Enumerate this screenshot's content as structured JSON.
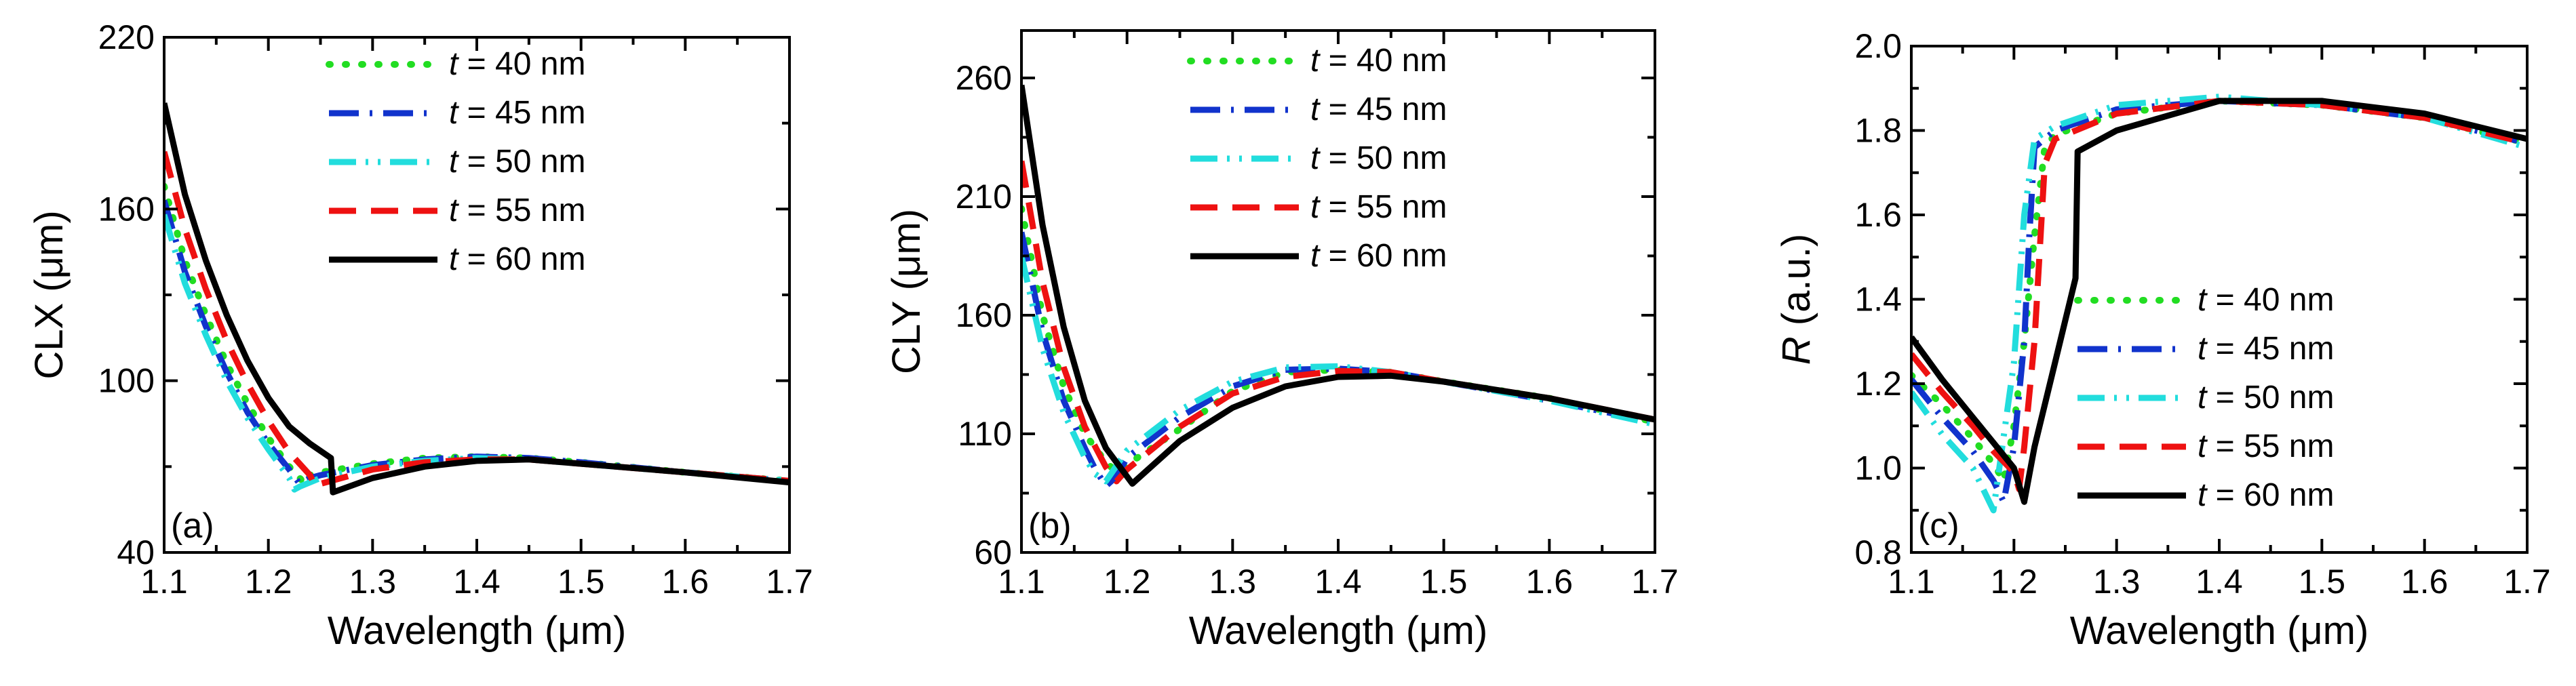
{
  "chart_data": [
    {
      "type": "line",
      "panel_label": "(a)",
      "xlabel": "Wavelength (μm)",
      "ylabel": "CLX (μm)",
      "xlim": [
        1.1,
        1.7
      ],
      "ylim": [
        40,
        220
      ],
      "xticks": [
        1.1,
        1.2,
        1.3,
        1.4,
        1.5,
        1.6,
        1.7
      ],
      "xtick_labels": [
        "1.1",
        "1.2",
        "1.3",
        "1.4",
        "1.5",
        "1.6",
        "1.7"
      ],
      "yticks": [
        40,
        100,
        160,
        220
      ],
      "ytick_labels": [
        "40",
        "100",
        "160",
        "220"
      ],
      "legend_position": "top-right",
      "series": [
        {
          "name": "t = 40 nm",
          "legend_italic": "t",
          "legend_rest": " = 40 nm",
          "color": "#22dd22",
          "dash": "dot",
          "x": [
            1.1,
            1.12,
            1.14,
            1.16,
            1.18,
            1.2,
            1.22,
            1.235,
            1.24,
            1.25,
            1.3,
            1.35,
            1.4,
            1.45,
            1.5,
            1.6,
            1.7
          ],
          "y": [
            168,
            142,
            123,
            106,
            92,
            80,
            70,
            64,
            67,
            68,
            71,
            73,
            73.5,
            73,
            71.5,
            68,
            65
          ]
        },
        {
          "name": "t = 45 nm",
          "legend_italic": "t",
          "legend_rest": " = 45 nm",
          "color": "#1133cc",
          "dash": "dashdot",
          "x": [
            1.1,
            1.12,
            1.14,
            1.16,
            1.18,
            1.2,
            1.22,
            1.23,
            1.24,
            1.25,
            1.3,
            1.35,
            1.4,
            1.45,
            1.5,
            1.6,
            1.7
          ],
          "y": [
            163,
            138,
            119,
            103,
            89,
            78,
            69,
            64,
            66,
            67,
            70.5,
            72.5,
            73.5,
            73,
            71.5,
            68,
            65
          ]
        },
        {
          "name": "t = 50 nm",
          "legend_italic": "t",
          "legend_rest": " = 50 nm",
          "color": "#22dddd",
          "dash": "dashdotdot",
          "x": [
            1.1,
            1.12,
            1.14,
            1.16,
            1.18,
            1.2,
            1.22,
            1.225,
            1.23,
            1.25,
            1.3,
            1.35,
            1.4,
            1.45,
            1.5,
            1.6,
            1.7
          ],
          "y": [
            158,
            134,
            116,
            100,
            87,
            76,
            66,
            62,
            63,
            66,
            70,
            72,
            73,
            72.5,
            71,
            68,
            65
          ]
        },
        {
          "name": "t = 55 nm",
          "legend_italic": "t",
          "legend_rest": " = 55 nm",
          "color": "#ee1111",
          "dash": "dash",
          "x": [
            1.1,
            1.12,
            1.14,
            1.16,
            1.18,
            1.2,
            1.22,
            1.24,
            1.245,
            1.25,
            1.3,
            1.35,
            1.4,
            1.45,
            1.5,
            1.6,
            1.7
          ],
          "y": [
            180,
            153,
            132,
            114,
            99,
            86,
            75,
            67,
            63,
            64,
            69,
            71.5,
            72.5,
            72.5,
            71,
            68,
            65
          ]
        },
        {
          "name": "t = 60 nm",
          "legend_italic": "t",
          "legend_rest": " = 60 nm",
          "color": "#000000",
          "dash": "solid",
          "x": [
            1.1,
            1.12,
            1.14,
            1.16,
            1.18,
            1.2,
            1.22,
            1.24,
            1.26,
            1.262,
            1.3,
            1.35,
            1.4,
            1.45,
            1.5,
            1.6,
            1.7
          ],
          "y": [
            197,
            165,
            142,
            123,
            107,
            94,
            84,
            78,
            73,
            61,
            66,
            70,
            72,
            72.5,
            71,
            68,
            64.5
          ]
        }
      ]
    },
    {
      "type": "line",
      "panel_label": "(b)",
      "xlabel": "Wavelength (μm)",
      "ylabel": "CLY (μm)",
      "xlim": [
        1.1,
        1.7
      ],
      "ylim": [
        60,
        280
      ],
      "xticks": [
        1.1,
        1.2,
        1.3,
        1.4,
        1.5,
        1.6,
        1.7
      ],
      "xtick_labels": [
        "1.1",
        "1.2",
        "1.3",
        "1.4",
        "1.5",
        "1.6",
        "1.7"
      ],
      "yticks": [
        60,
        110,
        160,
        210,
        260
      ],
      "ytick_labels": [
        "60",
        "110",
        "160",
        "210",
        "260"
      ],
      "legend_position": "top-right",
      "series": [
        {
          "name": "t = 40 nm",
          "legend_italic": "t",
          "legend_rest": " = 40 nm",
          "color": "#22dd22",
          "dash": "dot",
          "x": [
            1.1,
            1.12,
            1.14,
            1.16,
            1.18,
            1.19,
            1.2,
            1.25,
            1.3,
            1.35,
            1.4,
            1.45,
            1.5,
            1.6,
            1.7
          ],
          "y": [
            205,
            160,
            130,
            110,
            98,
            94,
            97,
            112,
            128,
            136,
            137,
            136,
            132,
            125,
            115
          ]
        },
        {
          "name": "t = 45 nm",
          "legend_italic": "t",
          "legend_rest": " = 45 nm",
          "color": "#1133cc",
          "dash": "dashdot",
          "x": [
            1.1,
            1.12,
            1.14,
            1.16,
            1.17,
            1.18,
            1.19,
            1.2,
            1.25,
            1.3,
            1.35,
            1.4,
            1.45,
            1.5,
            1.6,
            1.7
          ],
          "y": [
            195,
            153,
            124,
            104,
            95,
            88,
            92,
            100,
            117,
            130,
            137,
            137.5,
            136,
            132,
            124,
            115
          ]
        },
        {
          "name": "t = 50 nm",
          "legend_italic": "t",
          "legend_rest": " = 50 nm",
          "color": "#22dddd",
          "dash": "dashdotdot",
          "x": [
            1.1,
            1.12,
            1.14,
            1.16,
            1.17,
            1.18,
            1.2,
            1.25,
            1.3,
            1.35,
            1.4,
            1.45,
            1.5,
            1.6,
            1.7
          ],
          "y": [
            185,
            146,
            119,
            100,
            93,
            90,
            103,
            120,
            132,
            138,
            138.5,
            136,
            132,
            124,
            114
          ]
        },
        {
          "name": "t = 55 nm",
          "legend_italic": "t",
          "legend_rest": " = 55 nm",
          "color": "#ee1111",
          "dash": "dash",
          "x": [
            1.1,
            1.12,
            1.14,
            1.16,
            1.18,
            1.19,
            1.2,
            1.25,
            1.3,
            1.35,
            1.4,
            1.45,
            1.5,
            1.6,
            1.7
          ],
          "y": [
            225,
            174,
            138,
            113,
            96,
            90,
            95,
            113,
            127,
            134,
            136.5,
            136,
            132,
            125,
            116
          ]
        },
        {
          "name": "t = 60 nm",
          "legend_italic": "t",
          "legend_rest": " = 60 nm",
          "color": "#000000",
          "dash": "solid",
          "x": [
            1.1,
            1.12,
            1.14,
            1.16,
            1.18,
            1.2,
            1.205,
            1.21,
            1.25,
            1.3,
            1.35,
            1.4,
            1.45,
            1.5,
            1.6,
            1.7
          ],
          "y": [
            257,
            198,
            155,
            124,
            104,
            92,
            89,
            91,
            107,
            121,
            130,
            134,
            134.5,
            132,
            125,
            116
          ]
        }
      ]
    },
    {
      "type": "line",
      "panel_label": "(c)",
      "xlabel": "Wavelength (μm)",
      "ylabel_italic": "R",
      "ylabel_rest": " (a.u.)",
      "xlim": [
        1.1,
        1.7
      ],
      "ylim": [
        0.8,
        2.0
      ],
      "xticks": [
        1.1,
        1.2,
        1.3,
        1.4,
        1.5,
        1.6,
        1.7
      ],
      "xtick_labels": [
        "1.1",
        "1.2",
        "1.3",
        "1.4",
        "1.5",
        "1.6",
        "1.7"
      ],
      "yticks": [
        0.8,
        1.0,
        1.2,
        1.4,
        1.6,
        1.8,
        2.0
      ],
      "ytick_labels": [
        "0.8",
        "1.0",
        "1.2",
        "1.4",
        "1.6",
        "1.8",
        "2.0"
      ],
      "legend_position": "bottom-right",
      "series": [
        {
          "name": "t = 40 nm",
          "legend_italic": "t",
          "legend_rest": " = 40 nm",
          "color": "#22dd22",
          "dash": "dot",
          "x": [
            1.1,
            1.13,
            1.16,
            1.18,
            1.19,
            1.2,
            1.21,
            1.22,
            1.23,
            1.24,
            1.3,
            1.4,
            1.5,
            1.6,
            1.7
          ],
          "y": [
            1.22,
            1.15,
            1.07,
            1.01,
            0.97,
            1.1,
            1.3,
            1.55,
            1.76,
            1.79,
            1.84,
            1.87,
            1.86,
            1.83,
            1.77
          ]
        },
        {
          "name": "t = 45 nm",
          "legend_italic": "t",
          "legend_rest": " = 45 nm",
          "color": "#1133cc",
          "dash": "dashdot",
          "x": [
            1.1,
            1.13,
            1.16,
            1.18,
            1.19,
            1.2,
            1.21,
            1.215,
            1.22,
            1.24,
            1.3,
            1.4,
            1.5,
            1.6,
            1.7
          ],
          "y": [
            1.21,
            1.12,
            1.04,
            0.97,
            0.92,
            1.05,
            1.3,
            1.55,
            1.76,
            1.8,
            1.85,
            1.87,
            1.86,
            1.83,
            1.77
          ]
        },
        {
          "name": "t = 50 nm",
          "legend_italic": "t",
          "legend_rest": " = 50 nm",
          "color": "#22dddd",
          "dash": "dashdotdot",
          "x": [
            1.1,
            1.13,
            1.16,
            1.17,
            1.18,
            1.2,
            1.21,
            1.22,
            1.24,
            1.3,
            1.4,
            1.5,
            1.6,
            1.7
          ],
          "y": [
            1.18,
            1.08,
            1.0,
            0.95,
            0.9,
            1.25,
            1.6,
            1.78,
            1.81,
            1.86,
            1.88,
            1.86,
            1.83,
            1.76
          ]
        },
        {
          "name": "t = 55 nm",
          "legend_italic": "t",
          "legend_rest": " = 55 nm",
          "color": "#ee1111",
          "dash": "dash",
          "x": [
            1.1,
            1.13,
            1.16,
            1.18,
            1.2,
            1.205,
            1.21,
            1.22,
            1.23,
            1.24,
            1.3,
            1.4,
            1.5,
            1.6,
            1.7
          ],
          "y": [
            1.27,
            1.18,
            1.1,
            1.04,
            0.99,
            0.95,
            1.05,
            1.3,
            1.72,
            1.78,
            1.84,
            1.87,
            1.86,
            1.83,
            1.77
          ]
        },
        {
          "name": "t = 60 nm",
          "legend_italic": "t",
          "legend_rest": " = 60 nm",
          "color": "#000000",
          "dash": "solid",
          "x": [
            1.1,
            1.13,
            1.16,
            1.18,
            1.2,
            1.21,
            1.22,
            1.24,
            1.26,
            1.262,
            1.3,
            1.4,
            1.5,
            1.6,
            1.7
          ],
          "y": [
            1.31,
            1.21,
            1.12,
            1.06,
            1.0,
            0.92,
            1.05,
            1.25,
            1.45,
            1.75,
            1.8,
            1.87,
            1.87,
            1.84,
            1.78
          ]
        }
      ]
    }
  ]
}
